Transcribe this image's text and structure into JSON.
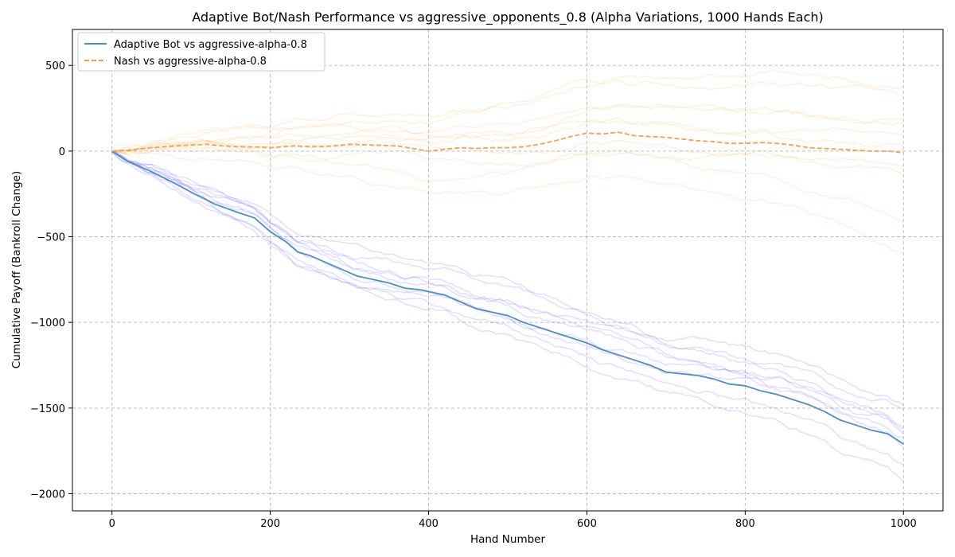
{
  "chart_data": {
    "type": "line",
    "title": "Adaptive Bot/Nash Performance vs  aggressive_opponents_0.8 (Alpha Variations, 1000 Hands Each)",
    "xlabel": "Hand Number",
    "ylabel": "Cumulative Payoff (Bankroll Change)",
    "xlim": [
      -50,
      1050
    ],
    "ylim": [
      -2100,
      710
    ],
    "xticks": [
      0,
      200,
      400,
      600,
      800,
      1000
    ],
    "yticks": [
      500,
      0,
      -500,
      -1000,
      -1500,
      -2000
    ],
    "ytick_labels": [
      "500",
      "0",
      "−500",
      "−1000",
      "−1500",
      "−2000"
    ],
    "grid": true,
    "legend_position": "top-left",
    "series": [
      {
        "name": "Adaptive Bot vs aggressive-alpha-0.8",
        "color": "#4a8fc7",
        "style": "solid",
        "x": [
          0,
          20,
          50,
          80,
          100,
          130,
          160,
          180,
          200,
          220,
          235,
          250,
          270,
          290,
          310,
          330,
          350,
          370,
          390,
          400,
          420,
          440,
          460,
          480,
          500,
          520,
          540,
          560,
          580,
          600,
          620,
          640,
          660,
          680,
          700,
          720,
          740,
          760,
          780,
          800,
          820,
          840,
          860,
          880,
          900,
          920,
          940,
          960,
          980,
          1000
        ],
        "y": [
          0,
          -60,
          -120,
          -190,
          -240,
          -310,
          -360,
          -390,
          -470,
          -530,
          -590,
          -610,
          -650,
          -690,
          -730,
          -750,
          -770,
          -800,
          -810,
          -820,
          -840,
          -880,
          -920,
          -940,
          -960,
          -1000,
          -1030,
          -1060,
          -1090,
          -1120,
          -1160,
          -1190,
          -1220,
          -1250,
          -1290,
          -1300,
          -1310,
          -1330,
          -1360,
          -1370,
          -1400,
          -1420,
          -1450,
          -1480,
          -1520,
          -1570,
          -1600,
          -1630,
          -1650,
          -1710
        ]
      },
      {
        "name": "Nash vs aggressive-alpha-0.8",
        "color": "#f5a04a",
        "style": "dashed",
        "x": [
          0,
          20,
          50,
          80,
          100,
          120,
          140,
          160,
          180,
          200,
          230,
          260,
          280,
          300,
          330,
          360,
          380,
          400,
          420,
          440,
          460,
          480,
          500,
          520,
          540,
          560,
          580,
          600,
          620,
          640,
          660,
          680,
          700,
          720,
          740,
          760,
          780,
          800,
          820,
          840,
          860,
          880,
          900,
          920,
          940,
          960,
          980,
          1000
        ],
        "y": [
          0,
          5,
          20,
          30,
          35,
          40,
          30,
          25,
          25,
          20,
          30,
          25,
          30,
          40,
          35,
          30,
          15,
          0,
          10,
          20,
          15,
          20,
          20,
          25,
          40,
          60,
          85,
          105,
          100,
          110,
          90,
          85,
          80,
          70,
          60,
          55,
          45,
          45,
          50,
          45,
          35,
          20,
          15,
          10,
          5,
          0,
          0,
          -10
        ]
      }
    ]
  }
}
